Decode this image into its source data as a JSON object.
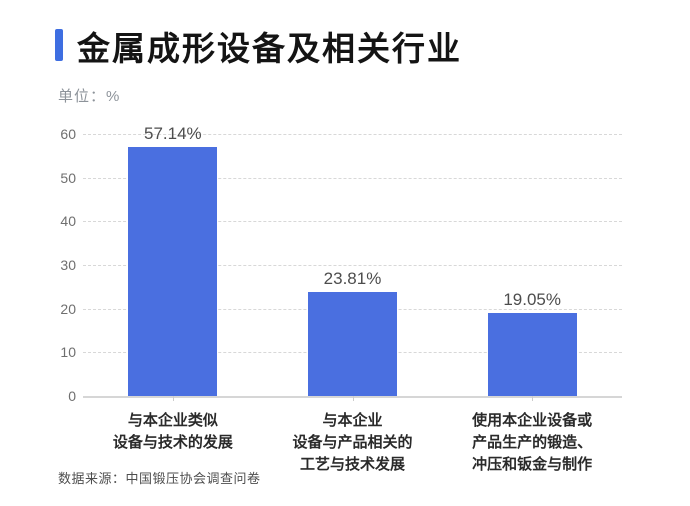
{
  "header": {
    "title": "金属成形设备及相关行业",
    "unit_label": "单位：%"
  },
  "colors": {
    "accent": "#3E6EE1",
    "bar": "#4A6FE0",
    "gridline": "#d8d8d8",
    "axis_text": "#6f6f6f",
    "value_text": "#4d4d4d",
    "category_text": "#2a2a2a"
  },
  "chart_data": {
    "type": "bar",
    "title": "金属成形设备及相关行业",
    "unit": "%",
    "categories": [
      "与本企业类似 设备与技术的发展",
      "与本企业 设备与产品相关的 工艺与技术发展",
      "使用本企业设备或 产品生产的锻造、 冲压和钣金与制作"
    ],
    "category_lines": [
      [
        "与本企业类似",
        "设备与技术的发展"
      ],
      [
        "与本企业",
        "设备与产品相关的",
        "工艺与技术发展"
      ],
      [
        "使用本企业设备或",
        "产品生产的锻造、",
        "冲压和钣金与制作"
      ]
    ],
    "values": [
      57.14,
      23.81,
      19.05
    ],
    "value_labels": [
      "57.14%",
      "23.81%",
      "19.05%"
    ],
    "xlabel": "",
    "ylabel": "单位：%",
    "y_ticks": [
      0,
      10,
      20,
      30,
      40,
      50,
      60
    ],
    "ylim": [
      0,
      60
    ],
    "grid": "horizontal-dashed",
    "legend": "none",
    "bar_color": "#4A6FE0"
  },
  "footer": {
    "source": "数据来源：中国锻压协会调查问卷"
  }
}
